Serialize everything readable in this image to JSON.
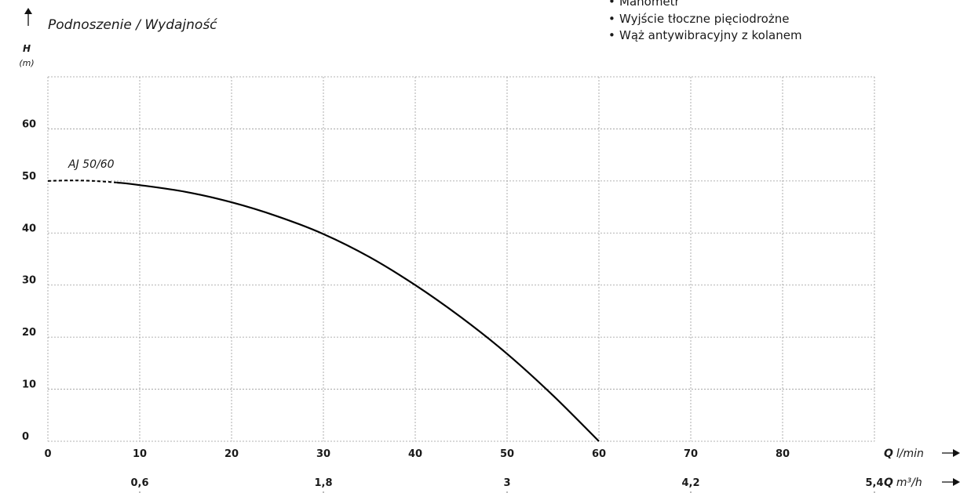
{
  "header": {
    "title": "Podnoszenie / Wydajność"
  },
  "features": [
    "Manometr",
    "Wyjście tłoczne pięciodrożne",
    "Wąż antywibracyjny z kolanem"
  ],
  "chart_data": {
    "type": "line",
    "title": "Podnoszenie / Wydajność",
    "ylabel": "H",
    "yunit": "(m)",
    "ylim": [
      0,
      70
    ],
    "yticks": [
      0,
      10,
      20,
      30,
      40,
      50,
      60
    ],
    "xlabel": "Q",
    "xunit": "l/min",
    "xlim": [
      0,
      90
    ],
    "xticks": [
      0,
      10,
      20,
      30,
      40,
      50,
      60,
      70,
      80
    ],
    "x2label": "Q",
    "x2unit": "m³/h",
    "x2ticks": [
      {
        "value": 10,
        "label": "0,6"
      },
      {
        "value": 30,
        "label": "1,8"
      },
      {
        "value": 50,
        "label": "3"
      },
      {
        "value": 70,
        "label": "4,2"
      },
      {
        "value": 90,
        "label": "5,4"
      }
    ],
    "grid": true,
    "series": [
      {
        "name": "AJ 50/60",
        "color": "#000000",
        "dashed_until_x": 7.5,
        "points": [
          [
            0,
            50
          ],
          [
            2.5,
            50.1
          ],
          [
            5,
            50
          ],
          [
            7.5,
            49.7
          ],
          [
            10,
            49.2
          ],
          [
            15,
            47.9
          ],
          [
            20,
            45.9
          ],
          [
            25,
            43.2
          ],
          [
            30,
            39.8
          ],
          [
            35,
            35.4
          ],
          [
            40,
            30.0
          ],
          [
            45,
            23.8
          ],
          [
            50,
            16.8
          ],
          [
            55,
            8.8
          ],
          [
            60,
            0
          ]
        ]
      }
    ]
  }
}
